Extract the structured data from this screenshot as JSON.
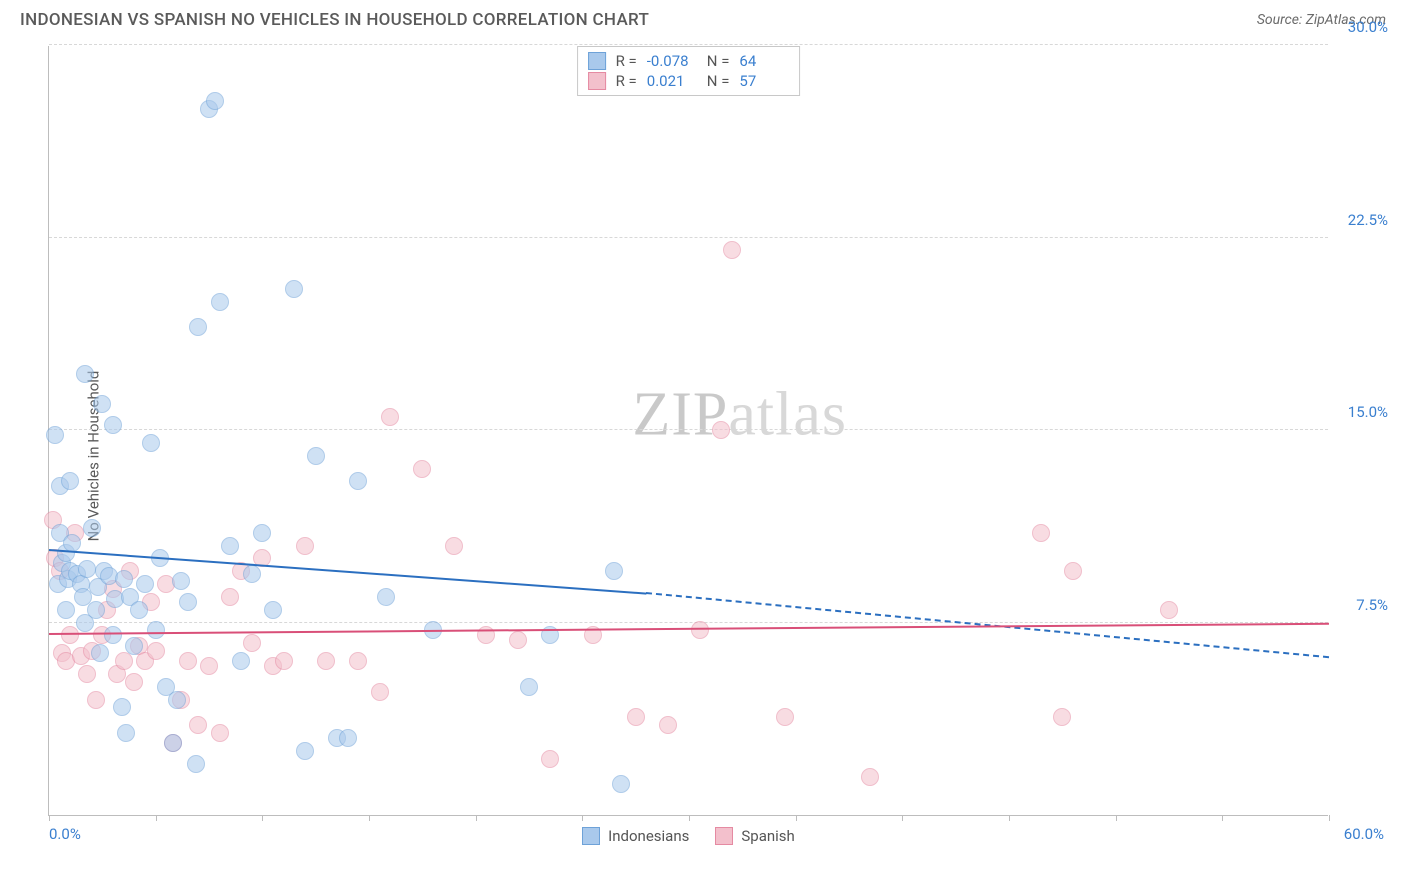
{
  "header": {
    "title": "INDONESIAN VS SPANISH NO VEHICLES IN HOUSEHOLD CORRELATION CHART",
    "source": "Source: ZipAtlas.com"
  },
  "chart": {
    "type": "scatter",
    "ylabel": "No Vehicles in Household",
    "xlim": [
      0,
      60
    ],
    "ylim": [
      0,
      30
    ],
    "background_color": "#ffffff",
    "grid_color": "#d8d8d8",
    "axis_color": "#bdbdbd",
    "tick_color_y": "#3a7fcf",
    "tick_color_x_left": "#3a7fcf",
    "tick_color_x_right": "#3a7fcf",
    "tick_fontsize": 15,
    "label_fontsize": 15,
    "title_fontsize": 17,
    "title_color": "#5a5a5a",
    "marker_radius": 9,
    "marker_opacity": 0.55,
    "yticks": [
      {
        "v": 7.5,
        "label": "7.5%"
      },
      {
        "v": 15.0,
        "label": "15.0%"
      },
      {
        "v": 22.5,
        "label": "22.5%"
      },
      {
        "v": 30.0,
        "label": "30.0%"
      }
    ],
    "xticks_major": [
      0,
      60
    ],
    "xticks_minor": [
      5,
      10,
      15,
      20,
      25,
      30,
      35,
      40,
      45,
      50,
      55
    ],
    "xtick_labels": {
      "0": "0.0%",
      "60": "60.0%"
    },
    "series": {
      "indonesians": {
        "label": "Indonesians",
        "fill": "#a9c9ec",
        "stroke": "#6ea2d8",
        "R": "-0.078",
        "N": "64",
        "points": [
          [
            0.3,
            14.8
          ],
          [
            0.4,
            9.0
          ],
          [
            0.5,
            11.0
          ],
          [
            0.5,
            12.8
          ],
          [
            0.6,
            9.8
          ],
          [
            0.8,
            10.2
          ],
          [
            0.8,
            8.0
          ],
          [
            0.9,
            9.2
          ],
          [
            1.0,
            13.0
          ],
          [
            1.0,
            9.5
          ],
          [
            1.1,
            10.6
          ],
          [
            1.3,
            9.4
          ],
          [
            1.5,
            9.0
          ],
          [
            1.6,
            8.5
          ],
          [
            1.7,
            7.5
          ],
          [
            1.7,
            17.2
          ],
          [
            1.8,
            9.6
          ],
          [
            2.0,
            11.2
          ],
          [
            2.2,
            8.0
          ],
          [
            2.3,
            8.9
          ],
          [
            2.4,
            6.3
          ],
          [
            2.5,
            16.0
          ],
          [
            2.6,
            9.5
          ],
          [
            2.8,
            9.3
          ],
          [
            3.0,
            15.2
          ],
          [
            3.0,
            7.0
          ],
          [
            3.1,
            8.4
          ],
          [
            3.4,
            4.2
          ],
          [
            3.5,
            9.2
          ],
          [
            3.6,
            3.2
          ],
          [
            3.8,
            8.5
          ],
          [
            4.0,
            6.6
          ],
          [
            4.2,
            8.0
          ],
          [
            4.5,
            9.0
          ],
          [
            4.8,
            14.5
          ],
          [
            5.0,
            7.2
          ],
          [
            5.2,
            10.0
          ],
          [
            5.5,
            5.0
          ],
          [
            5.8,
            2.8
          ],
          [
            6.0,
            4.5
          ],
          [
            6.2,
            9.1
          ],
          [
            6.5,
            8.3
          ],
          [
            6.9,
            2.0
          ],
          [
            7.0,
            19.0
          ],
          [
            7.5,
            27.5
          ],
          [
            7.8,
            27.8
          ],
          [
            8.0,
            20.0
          ],
          [
            8.5,
            10.5
          ],
          [
            9.0,
            6.0
          ],
          [
            9.5,
            9.4
          ],
          [
            10.0,
            11.0
          ],
          [
            10.5,
            8.0
          ],
          [
            11.5,
            20.5
          ],
          [
            12.0,
            2.5
          ],
          [
            12.5,
            14.0
          ],
          [
            13.5,
            3.0
          ],
          [
            14.0,
            3.0
          ],
          [
            14.5,
            13.0
          ],
          [
            15.8,
            8.5
          ],
          [
            18.0,
            7.2
          ],
          [
            22.5,
            5.0
          ],
          [
            23.5,
            7.0
          ],
          [
            26.5,
            9.5
          ],
          [
            26.8,
            1.2
          ]
        ],
        "trend": {
          "y_at_x0": 10.3,
          "y_at_x28": 8.6,
          "y_at_x60": 6.1,
          "solid_until_x": 28,
          "color": "#2b6fc0",
          "width": 2.5
        }
      },
      "spanish": {
        "label": "Spanish",
        "fill": "#f3c0cc",
        "stroke": "#e58aa2",
        "R": "0.021",
        "N": "57",
        "points": [
          [
            0.2,
            11.5
          ],
          [
            0.3,
            10.0
          ],
          [
            0.5,
            9.5
          ],
          [
            0.6,
            6.3
          ],
          [
            0.8,
            6.0
          ],
          [
            1.0,
            7.0
          ],
          [
            1.2,
            11.0
          ],
          [
            1.5,
            6.2
          ],
          [
            1.8,
            5.5
          ],
          [
            2.0,
            6.4
          ],
          [
            2.2,
            4.5
          ],
          [
            2.5,
            7.0
          ],
          [
            2.7,
            8.0
          ],
          [
            3.0,
            8.8
          ],
          [
            3.2,
            5.5
          ],
          [
            3.5,
            6.0
          ],
          [
            3.8,
            9.5
          ],
          [
            4.0,
            5.2
          ],
          [
            4.2,
            6.6
          ],
          [
            4.5,
            6.0
          ],
          [
            4.8,
            8.3
          ],
          [
            5.0,
            6.4
          ],
          [
            5.5,
            9.0
          ],
          [
            5.8,
            2.8
          ],
          [
            6.2,
            4.5
          ],
          [
            6.5,
            6.0
          ],
          [
            7.0,
            3.5
          ],
          [
            7.5,
            5.8
          ],
          [
            8.0,
            3.2
          ],
          [
            8.5,
            8.5
          ],
          [
            9.0,
            9.5
          ],
          [
            9.5,
            6.7
          ],
          [
            10.0,
            10.0
          ],
          [
            10.5,
            5.8
          ],
          [
            11.0,
            6.0
          ],
          [
            12.0,
            10.5
          ],
          [
            13.0,
            6.0
          ],
          [
            14.5,
            6.0
          ],
          [
            15.5,
            4.8
          ],
          [
            16.0,
            15.5
          ],
          [
            17.5,
            13.5
          ],
          [
            19.0,
            10.5
          ],
          [
            20.5,
            7.0
          ],
          [
            22.0,
            6.8
          ],
          [
            23.5,
            2.2
          ],
          [
            25.5,
            7.0
          ],
          [
            27.5,
            3.8
          ],
          [
            29.0,
            3.5
          ],
          [
            30.5,
            7.2
          ],
          [
            31.5,
            15.0
          ],
          [
            32.0,
            22.0
          ],
          [
            34.5,
            3.8
          ],
          [
            38.5,
            1.5
          ],
          [
            46.5,
            11.0
          ],
          [
            47.5,
            3.8
          ],
          [
            48.0,
            9.5
          ],
          [
            52.5,
            8.0
          ]
        ],
        "trend": {
          "y_at_x0": 7.0,
          "y_at_x60": 7.4,
          "color": "#d94f78",
          "width": 2.2
        }
      }
    },
    "legend_top": {
      "border_color": "#c8c8c8",
      "value_color": "#3a7fcf",
      "label_color": "#555555"
    },
    "watermark": {
      "text_a": "ZIP",
      "text_b": "atlas",
      "color_a": "#c9c9c9",
      "color_b": "#d8d8d8"
    }
  }
}
